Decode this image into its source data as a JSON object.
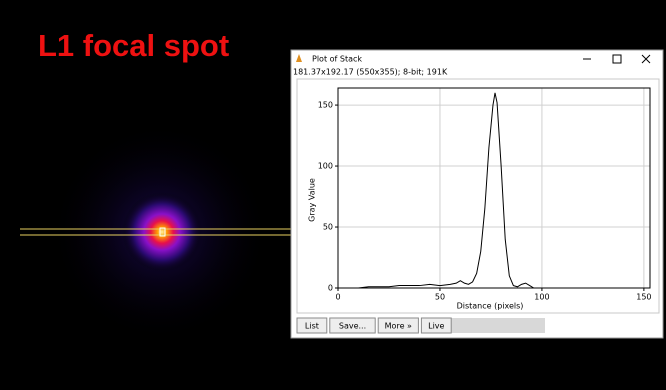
{
  "title": "L1 focal spot",
  "window": {
    "title": "Plot of Stack",
    "info": "181.37x192.17  (550x355); 8-bit; 191K",
    "buttons": [
      "List",
      "Save...",
      "More »",
      "Live"
    ]
  },
  "chart_data": {
    "type": "line",
    "xlabel": "Distance (pixels)",
    "ylabel": "Gray Value",
    "x": [
      0,
      5,
      10,
      15,
      20,
      25,
      30,
      35,
      40,
      45,
      50,
      55,
      58,
      60,
      62,
      64,
      66,
      68,
      70,
      72,
      74,
      76,
      77,
      78,
      80,
      82,
      84,
      86,
      88,
      90,
      92,
      94,
      96,
      98,
      100
    ],
    "series": [
      {
        "color": "#000000",
        "values": [
          0,
          0,
          0,
          1,
          1,
          1,
          2,
          2,
          2,
          3,
          2,
          3,
          4,
          6,
          4,
          3,
          5,
          12,
          30,
          65,
          115,
          150,
          160,
          152,
          100,
          40,
          10,
          2,
          1,
          3,
          4,
          2,
          0,
          0,
          0
        ]
      }
    ],
    "xlim": [
      0,
      153
    ],
    "ylim": [
      0,
      164
    ],
    "xticks": [
      0,
      50,
      100,
      150
    ],
    "yticks": [
      0,
      50,
      100,
      150
    ],
    "grid": true
  }
}
